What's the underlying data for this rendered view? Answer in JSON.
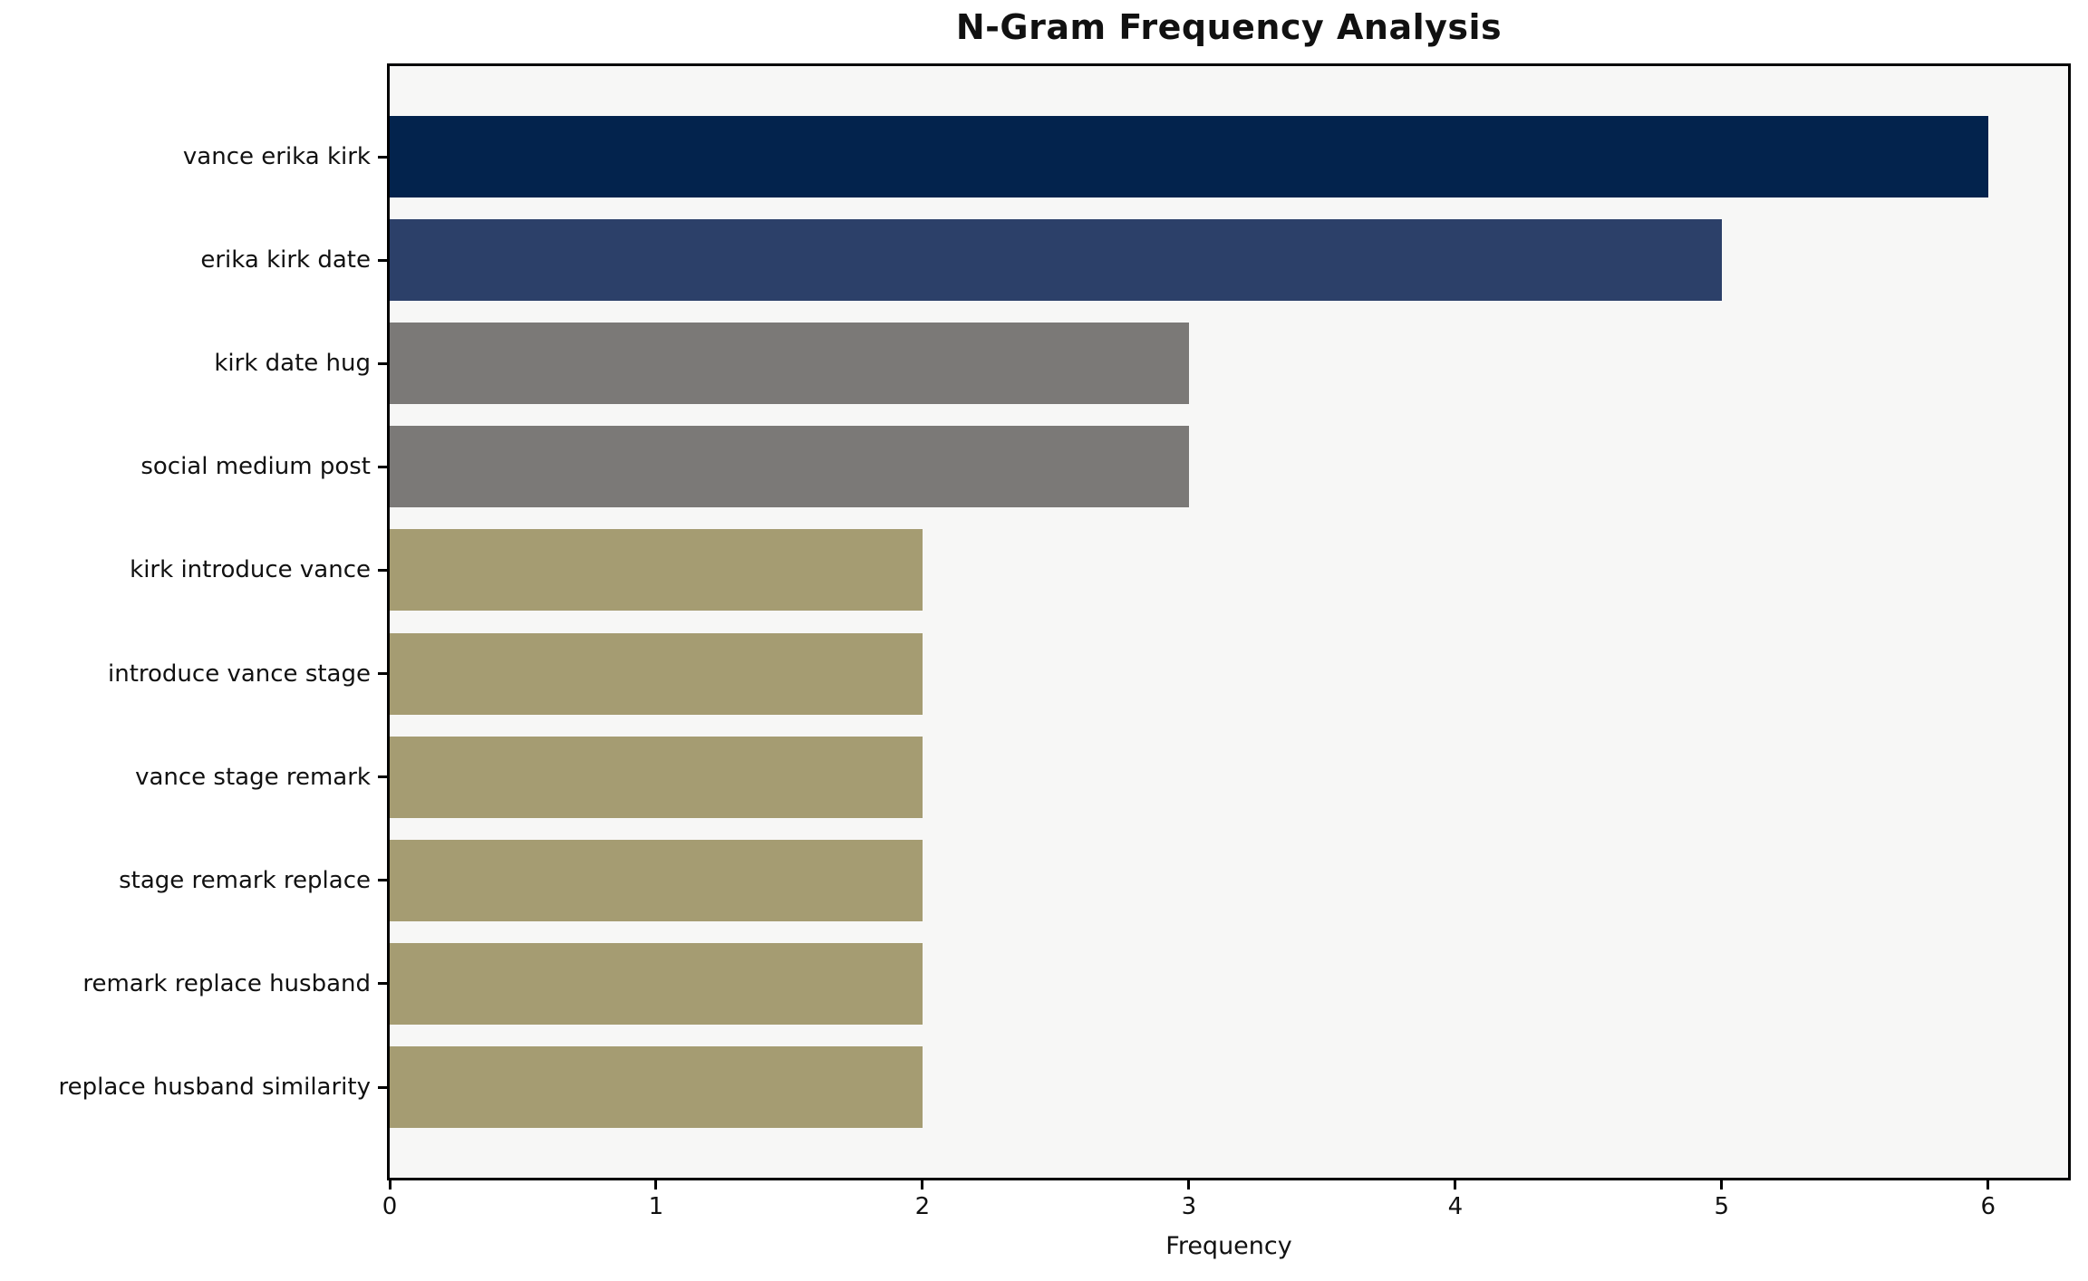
{
  "figure": {
    "title": "N-Gram Frequency Analysis",
    "xlabel": "Frequency"
  },
  "chart_data": {
    "type": "bar",
    "orientation": "horizontal",
    "title": "N-Gram Frequency Analysis",
    "xlabel": "Frequency",
    "ylabel": "",
    "categories": [
      "vance erika kirk",
      "erika kirk date",
      "kirk date hug",
      "social medium post",
      "kirk introduce vance",
      "introduce vance stage",
      "vance stage remark",
      "stage remark replace",
      "remark replace husband",
      "replace husband similarity"
    ],
    "values": [
      6,
      5,
      3,
      3,
      2,
      2,
      2,
      2,
      2,
      2
    ],
    "bar_colors": [
      "#03234d",
      "#2c4069",
      "#7b7977",
      "#7b7977",
      "#a59c72",
      "#a59c72",
      "#a59c72",
      "#a59c72",
      "#a59c72",
      "#a59c72"
    ],
    "xticks": [
      0,
      1,
      2,
      3,
      4,
      5,
      6
    ],
    "xlim": [
      0,
      6.3
    ],
    "grid": false,
    "legend": null,
    "plot_background": "#f7f7f6",
    "figure_background": "#ffffff",
    "spine_color": "#000000",
    "text_color": "#111111"
  }
}
